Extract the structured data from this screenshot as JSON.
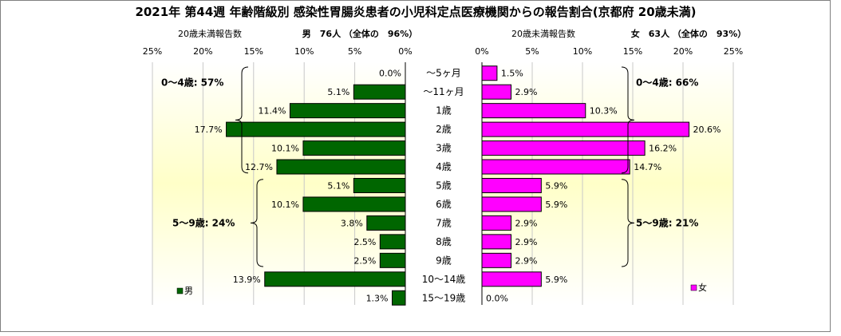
{
  "chart_data": {
    "type": "bar",
    "orientation": "horizontal-butterfly",
    "title": "2021年 第44週 年齢階級別 感染性胃腸炎患者の小児科定点医療機関からの報告割合(京都府 20歳未満)",
    "categories": [
      "～5ヶ月",
      "～11ヶ月",
      "1歳",
      "2歳",
      "3歳",
      "4歳",
      "5歳",
      "6歳",
      "7歳",
      "8歳",
      "9歳",
      "10～14歳",
      "15～19歳"
    ],
    "xlim": [
      0,
      25
    ],
    "tick_labels": [
      "0%",
      "5%",
      "10%",
      "15%",
      "20%",
      "25%"
    ],
    "grid": "vertical",
    "left_panel": {
      "header": "20歳未満報告数",
      "summary": "男　76人 （全体の　96%）",
      "group_labels": [
        "0～4歳: 57%",
        "5～9歳: 24%"
      ]
    },
    "right_panel": {
      "header": "20歳未満報告数",
      "summary": "女　63人 （全体の　93%）",
      "group_labels": [
        "0～4歳: 66%",
        "5～9歳: 21%"
      ]
    },
    "series": [
      {
        "name": "男",
        "color": "#006600",
        "values": [
          0.0,
          5.1,
          11.4,
          17.7,
          10.1,
          12.7,
          5.1,
          10.1,
          3.8,
          2.5,
          2.5,
          13.9,
          1.3
        ],
        "labels": [
          "0.0%",
          "5.1%",
          "11.4%",
          "17.7%",
          "10.1%",
          "12.7%",
          "5.1%",
          "10.1%",
          "3.8%",
          "2.5%",
          "2.5%",
          "13.9%",
          "1.3%"
        ]
      },
      {
        "name": "女",
        "color": "#FF00FF",
        "values": [
          1.5,
          2.9,
          10.3,
          20.6,
          16.2,
          14.7,
          5.9,
          5.9,
          2.9,
          2.9,
          2.9,
          5.9,
          0.0
        ],
        "labels": [
          "1.5%",
          "2.9%",
          "10.3%",
          "20.6%",
          "16.2%",
          "14.7%",
          "5.9%",
          "5.9%",
          "2.9%",
          "2.9%",
          "2.9%",
          "5.9%",
          "0.0%"
        ]
      }
    ]
  }
}
